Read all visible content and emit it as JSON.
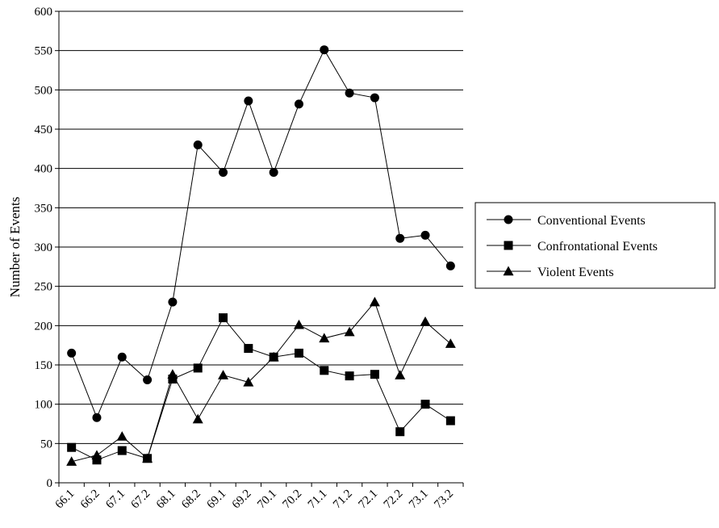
{
  "chart_data": {
    "type": "line",
    "title": "",
    "xlabel": "",
    "ylabel": "Number of Events",
    "ylim": [
      0,
      600
    ],
    "yticks": [
      0,
      50,
      100,
      150,
      200,
      250,
      300,
      350,
      400,
      450,
      500,
      550,
      600
    ],
    "categories": [
      "66.1",
      "66.2",
      "67.1",
      "67.2",
      "68.1",
      "68.2",
      "69.1",
      "69.2",
      "70.1",
      "70.2",
      "71.1",
      "71.2",
      "72.1",
      "72.2",
      "73.1",
      "73.2"
    ],
    "x_points": [
      {
        "label": "66.1"
      },
      {
        "label": ""
      },
      {
        "label": "66.2"
      },
      {
        "label": ""
      },
      {
        "label": "67.1"
      },
      {
        "label": ""
      },
      {
        "label": "67.2"
      },
      {
        "label": ""
      },
      {
        "label": "68.1"
      },
      {
        "label": ""
      },
      {
        "label": "68.2"
      },
      {
        "label": ""
      },
      {
        "label": "69.1"
      },
      {
        "label": ""
      },
      {
        "label": "69.2"
      },
      {
        "label": ""
      },
      {
        "label": "70.1"
      },
      {
        "label": ""
      },
      {
        "label": "70.2"
      },
      {
        "label": ""
      },
      {
        "label": "71.1"
      },
      {
        "label": ""
      },
      {
        "label": "71.2"
      },
      {
        "label": ""
      },
      {
        "label": "72.1"
      },
      {
        "label": ""
      },
      {
        "label": "72.2"
      },
      {
        "label": ""
      },
      {
        "label": "73.1"
      },
      {
        "label": ""
      },
      {
        "label": "73.2"
      }
    ],
    "grid": "horizontal",
    "legend_position": "right",
    "series": [
      {
        "name": "Conventional Events",
        "marker": "circle",
        "color": "#000000",
        "values": [
          165,
          83,
          160,
          131,
          230,
          430,
          395,
          486,
          395,
          482,
          551,
          496,
          490,
          311,
          315,
          276
        ]
      },
      {
        "name": "Confrontational Events",
        "marker": "square",
        "color": "#000000",
        "values": [
          45,
          29,
          41,
          31,
          132,
          146,
          210,
          171,
          160,
          165,
          143,
          136,
          138,
          65,
          100,
          79
        ]
      },
      {
        "name": "Violent Events",
        "marker": "triangle",
        "color": "#000000",
        "values": [
          27,
          35,
          59,
          31,
          138,
          81,
          137,
          128,
          160,
          201,
          184,
          192,
          230,
          137,
          205,
          177
        ]
      }
    ]
  }
}
